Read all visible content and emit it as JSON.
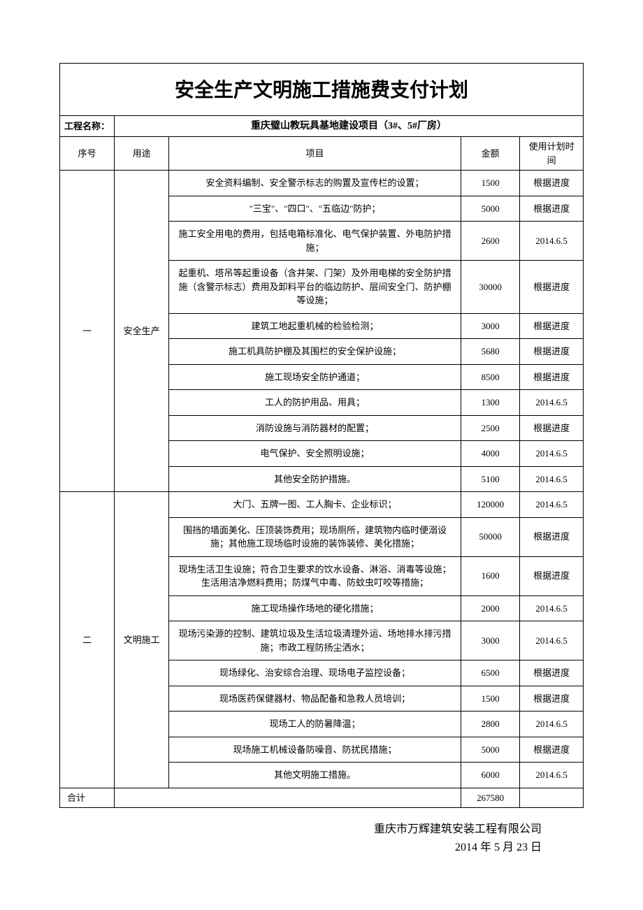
{
  "title": "安全生产文明施工措施费支付计划",
  "project_label": "工程名称：",
  "project_name": "重庆璧山教玩具基地建设项目（3#、5#厂房）",
  "headers": {
    "seq": "序号",
    "purpose": "用途",
    "item": "项目",
    "amount": "金额",
    "schedule": "使用计划时间"
  },
  "groups": [
    {
      "seq": "一",
      "purpose": "安全生产",
      "rows": [
        {
          "desc": "安全资料编制、安全警示标志的购置及宣传栏的设置；",
          "amount": "1500",
          "schedule": "根据进度"
        },
        {
          "desc": "\"三宝\"、\"四口\"、\"五临边\"防护；",
          "amount": "5000",
          "schedule": "根据进度"
        },
        {
          "desc": "施工安全用电的费用，包括电箱标准化、电气保护装置、外电防护措施；",
          "amount": "2600",
          "schedule": "2014.6.5"
        },
        {
          "desc": "起重机、塔吊等起重设备（含井架、门架）及外用电梯的安全防护措施（含警示标志）费用及卸料平台的临边防护、层间安全门、防护棚等设施；",
          "amount": "30000",
          "schedule": "根据进度"
        },
        {
          "desc": "建筑工地起重机械的检验检测；",
          "amount": "3000",
          "schedule": "根据进度"
        },
        {
          "desc": "施工机具防护棚及其围栏的安全保护设施；",
          "amount": "5680",
          "schedule": "根据进度"
        },
        {
          "desc": "施工现场安全防护通道；",
          "amount": "8500",
          "schedule": "根据进度"
        },
        {
          "desc": "工人的防护用品、用具；",
          "amount": "1300",
          "schedule": "2014.6.5"
        },
        {
          "desc": "消防设施与消防器材的配置；",
          "amount": "2500",
          "schedule": "根据进度"
        },
        {
          "desc": "电气保护、安全照明设施；",
          "amount": "4000",
          "schedule": "2014.6.5"
        },
        {
          "desc": "其他安全防护措施。",
          "amount": "5100",
          "schedule": "2014.6.5"
        }
      ]
    },
    {
      "seq": "二",
      "purpose": "文明施工",
      "rows": [
        {
          "desc": "大门、五牌一图、工人胸卡、企业标识；",
          "amount": "120000",
          "schedule": "2014.6.5"
        },
        {
          "desc": "围挡的墙面美化、压顶装饰费用；现场厕所，建筑物内临时便溺设施；其他施工现场临时设施的装饰装修、美化措施；",
          "amount": "50000",
          "schedule": "根据进度"
        },
        {
          "desc": "现场生活卫生设施；符合卫生要求的饮水设备、淋浴、消毒等设施；生活用洁净燃料费用；防煤气中毒、防蚊虫叮咬等措施；",
          "amount": "1600",
          "schedule": "根据进度"
        },
        {
          "desc": "施工现场操作场地的硬化措施；",
          "amount": "2000",
          "schedule": "2014.6.5"
        },
        {
          "desc": "现场污染源的控制、建筑垃圾及生活垃圾清理外运、场地排水排污措施；市政工程防扬尘洒水；",
          "amount": "3000",
          "schedule": "2014.6.5"
        },
        {
          "desc": "现场绿化、治安综合治理、现场电子监控设备；",
          "amount": "6500",
          "schedule": "根据进度"
        },
        {
          "desc": "现场医药保健器材、物品配备和急救人员培训；",
          "amount": "1500",
          "schedule": "根据进度"
        },
        {
          "desc": "现场工人的防暑降温；",
          "amount": "2800",
          "schedule": "2014.6.5"
        },
        {
          "desc": "现场施工机械设备防噪音、防扰民措施；",
          "amount": "5000",
          "schedule": "根据进度"
        },
        {
          "desc": "其他文明施工措施。",
          "amount": "6000",
          "schedule": "2014.6.5"
        }
      ]
    }
  ],
  "total_label": "合计",
  "total_amount": "267580",
  "footer_company": "重庆市万辉建筑安装工程有限公司",
  "footer_date": "2014 年 5 月 23 日",
  "col_widths": {
    "seq": 74,
    "purpose": 74,
    "item": 396,
    "amount": 80,
    "schedule": 86
  }
}
